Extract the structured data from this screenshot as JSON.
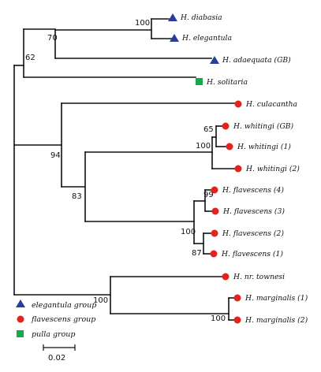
{
  "taxa": [
    {
      "label": "H. diabasia",
      "group": "elegantula"
    },
    {
      "label": "H. elegantula",
      "group": "elegantula"
    },
    {
      "label": "H. adaequata (GB)",
      "group": "elegantula"
    },
    {
      "label": "H. solitaria",
      "group": "pulla"
    },
    {
      "label": "H. culacantha",
      "group": "flavescens"
    },
    {
      "label": "H. whitingi (GB)",
      "group": "flavescens"
    },
    {
      "label": "H. whitingi (1)",
      "group": "flavescens"
    },
    {
      "label": "H. whitingi (2)",
      "group": "flavescens"
    },
    {
      "label": "H. flavescens (4)",
      "group": "flavescens"
    },
    {
      "label": "H. flavescens (3)",
      "group": "flavescens"
    },
    {
      "label": "H. flavescens (2)",
      "group": "flavescens"
    },
    {
      "label": "H. flavescens (1)",
      "group": "flavescens"
    },
    {
      "label": "H. nr. townesi",
      "group": "flavescens"
    },
    {
      "label": "H. marginalis (1)",
      "group": "flavescens"
    },
    {
      "label": "H. marginalis (2)",
      "group": "flavescens"
    }
  ],
  "support_values": [
    "100",
    "70",
    "62",
    "94",
    "65",
    "100",
    "83",
    "99",
    "100",
    "87",
    "100",
    "100"
  ],
  "legend": [
    {
      "label": "elegantula group",
      "marker": "triangle",
      "color": "#283e9a"
    },
    {
      "label": "flavescens group",
      "marker": "circle",
      "color": "#e2231e"
    },
    {
      "label": "pulla group",
      "marker": "square",
      "color": "#16a84a"
    }
  ],
  "scale_bar": {
    "label": "0.02",
    "value": 0.02
  },
  "colors": {
    "elegantula": "#283e9a",
    "flavescens": "#e2231e",
    "pulla": "#16a84a",
    "branch": "#111111"
  }
}
